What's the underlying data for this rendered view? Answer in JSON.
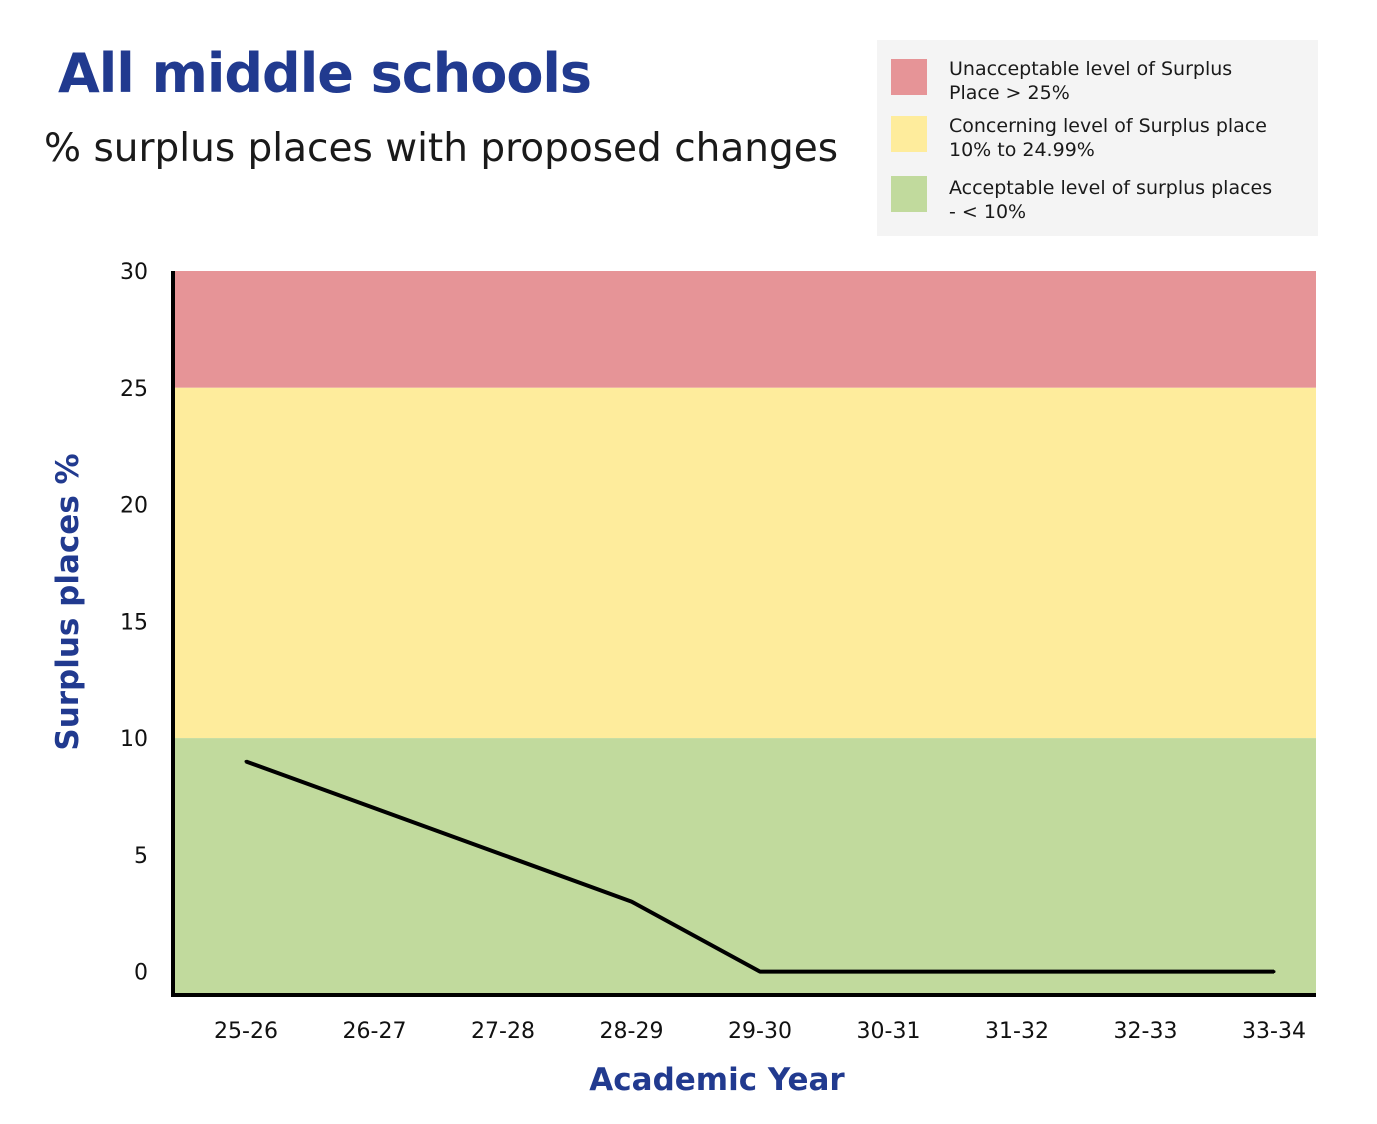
{
  "header": {
    "title": "All middle schools",
    "subtitle": "% surplus places with proposed changes"
  },
  "legend": {
    "items": [
      {
        "line1": "Unacceptable level of Surplus",
        "line2": "Place > 25%",
        "color": "#e69497"
      },
      {
        "line1": "Concerning level of Surplus place",
        "line2": "10% to 24.99%",
        "color": "#feec9c"
      },
      {
        "line1": "Acceptable level of surplus places",
        "line2": "- < 10%",
        "color": "#c1da9d"
      }
    ]
  },
  "chart_data": {
    "type": "line",
    "title": "All middle schools",
    "subtitle": "% surplus places with proposed changes",
    "xlabel": "Academic Year",
    "ylabel": "Surplus places %",
    "categories": [
      "25-26",
      "26-27",
      "27-28",
      "28-29",
      "29-30",
      "30-31",
      "31-32",
      "32-33",
      "33-34"
    ],
    "series": [
      {
        "values": [
          9,
          7,
          5,
          3,
          0,
          0,
          0,
          0,
          0
        ],
        "color": "#000000"
      }
    ],
    "ylim": [
      -1,
      30
    ],
    "yticks": [
      0,
      5,
      10,
      15,
      20,
      25,
      30
    ],
    "bands": [
      {
        "from": 25,
        "to": 30,
        "color": "#e69497"
      },
      {
        "from": 10,
        "to": 25,
        "color": "#feec9c"
      },
      {
        "from": -1,
        "to": 10,
        "color": "#c1da9d"
      }
    ],
    "grid": false
  }
}
